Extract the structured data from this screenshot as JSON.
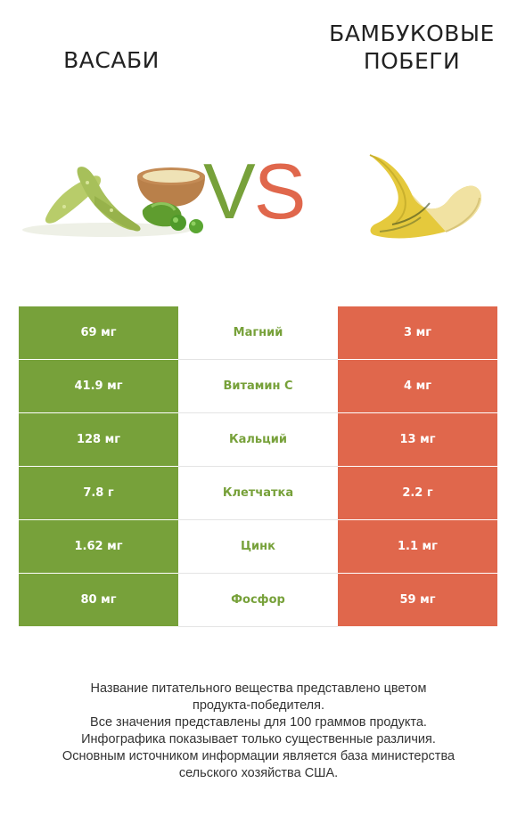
{
  "left_product": {
    "title": "ВАСАБИ",
    "color": "#77a13a"
  },
  "right_product": {
    "title_line1": "БАМБУКОВЫЕ",
    "title_line2": "ПОБЕГИ",
    "color": "#e0674c"
  },
  "vs": {
    "v": "V",
    "s": "S"
  },
  "rows": [
    {
      "left": "69 мг",
      "nutrient": "Магний",
      "right": "3 мг",
      "winner": "left"
    },
    {
      "left": "41.9 мг",
      "nutrient": "Витамин C",
      "right": "4 мг",
      "winner": "left"
    },
    {
      "left": "128 мг",
      "nutrient": "Кальций",
      "right": "13 мг",
      "winner": "left"
    },
    {
      "left": "7.8 г",
      "nutrient": "Клетчатка",
      "right": "2.2 г",
      "winner": "left"
    },
    {
      "left": "1.62 мг",
      "nutrient": "Цинк",
      "right": "1.1 мг",
      "winner": "left"
    },
    {
      "left": "80 мг",
      "nutrient": "Фосфор",
      "right": "59 мг",
      "winner": "left"
    }
  ],
  "notes": [
    "Название питательного вещества представлено цветом",
    "продукта-победителя.",
    "Все значения представлены для 100 граммов продукта.",
    "Инфографика показывает только существенные различия.",
    "Основным источником информации является база министерства",
    "сельского хозяйства США."
  ]
}
